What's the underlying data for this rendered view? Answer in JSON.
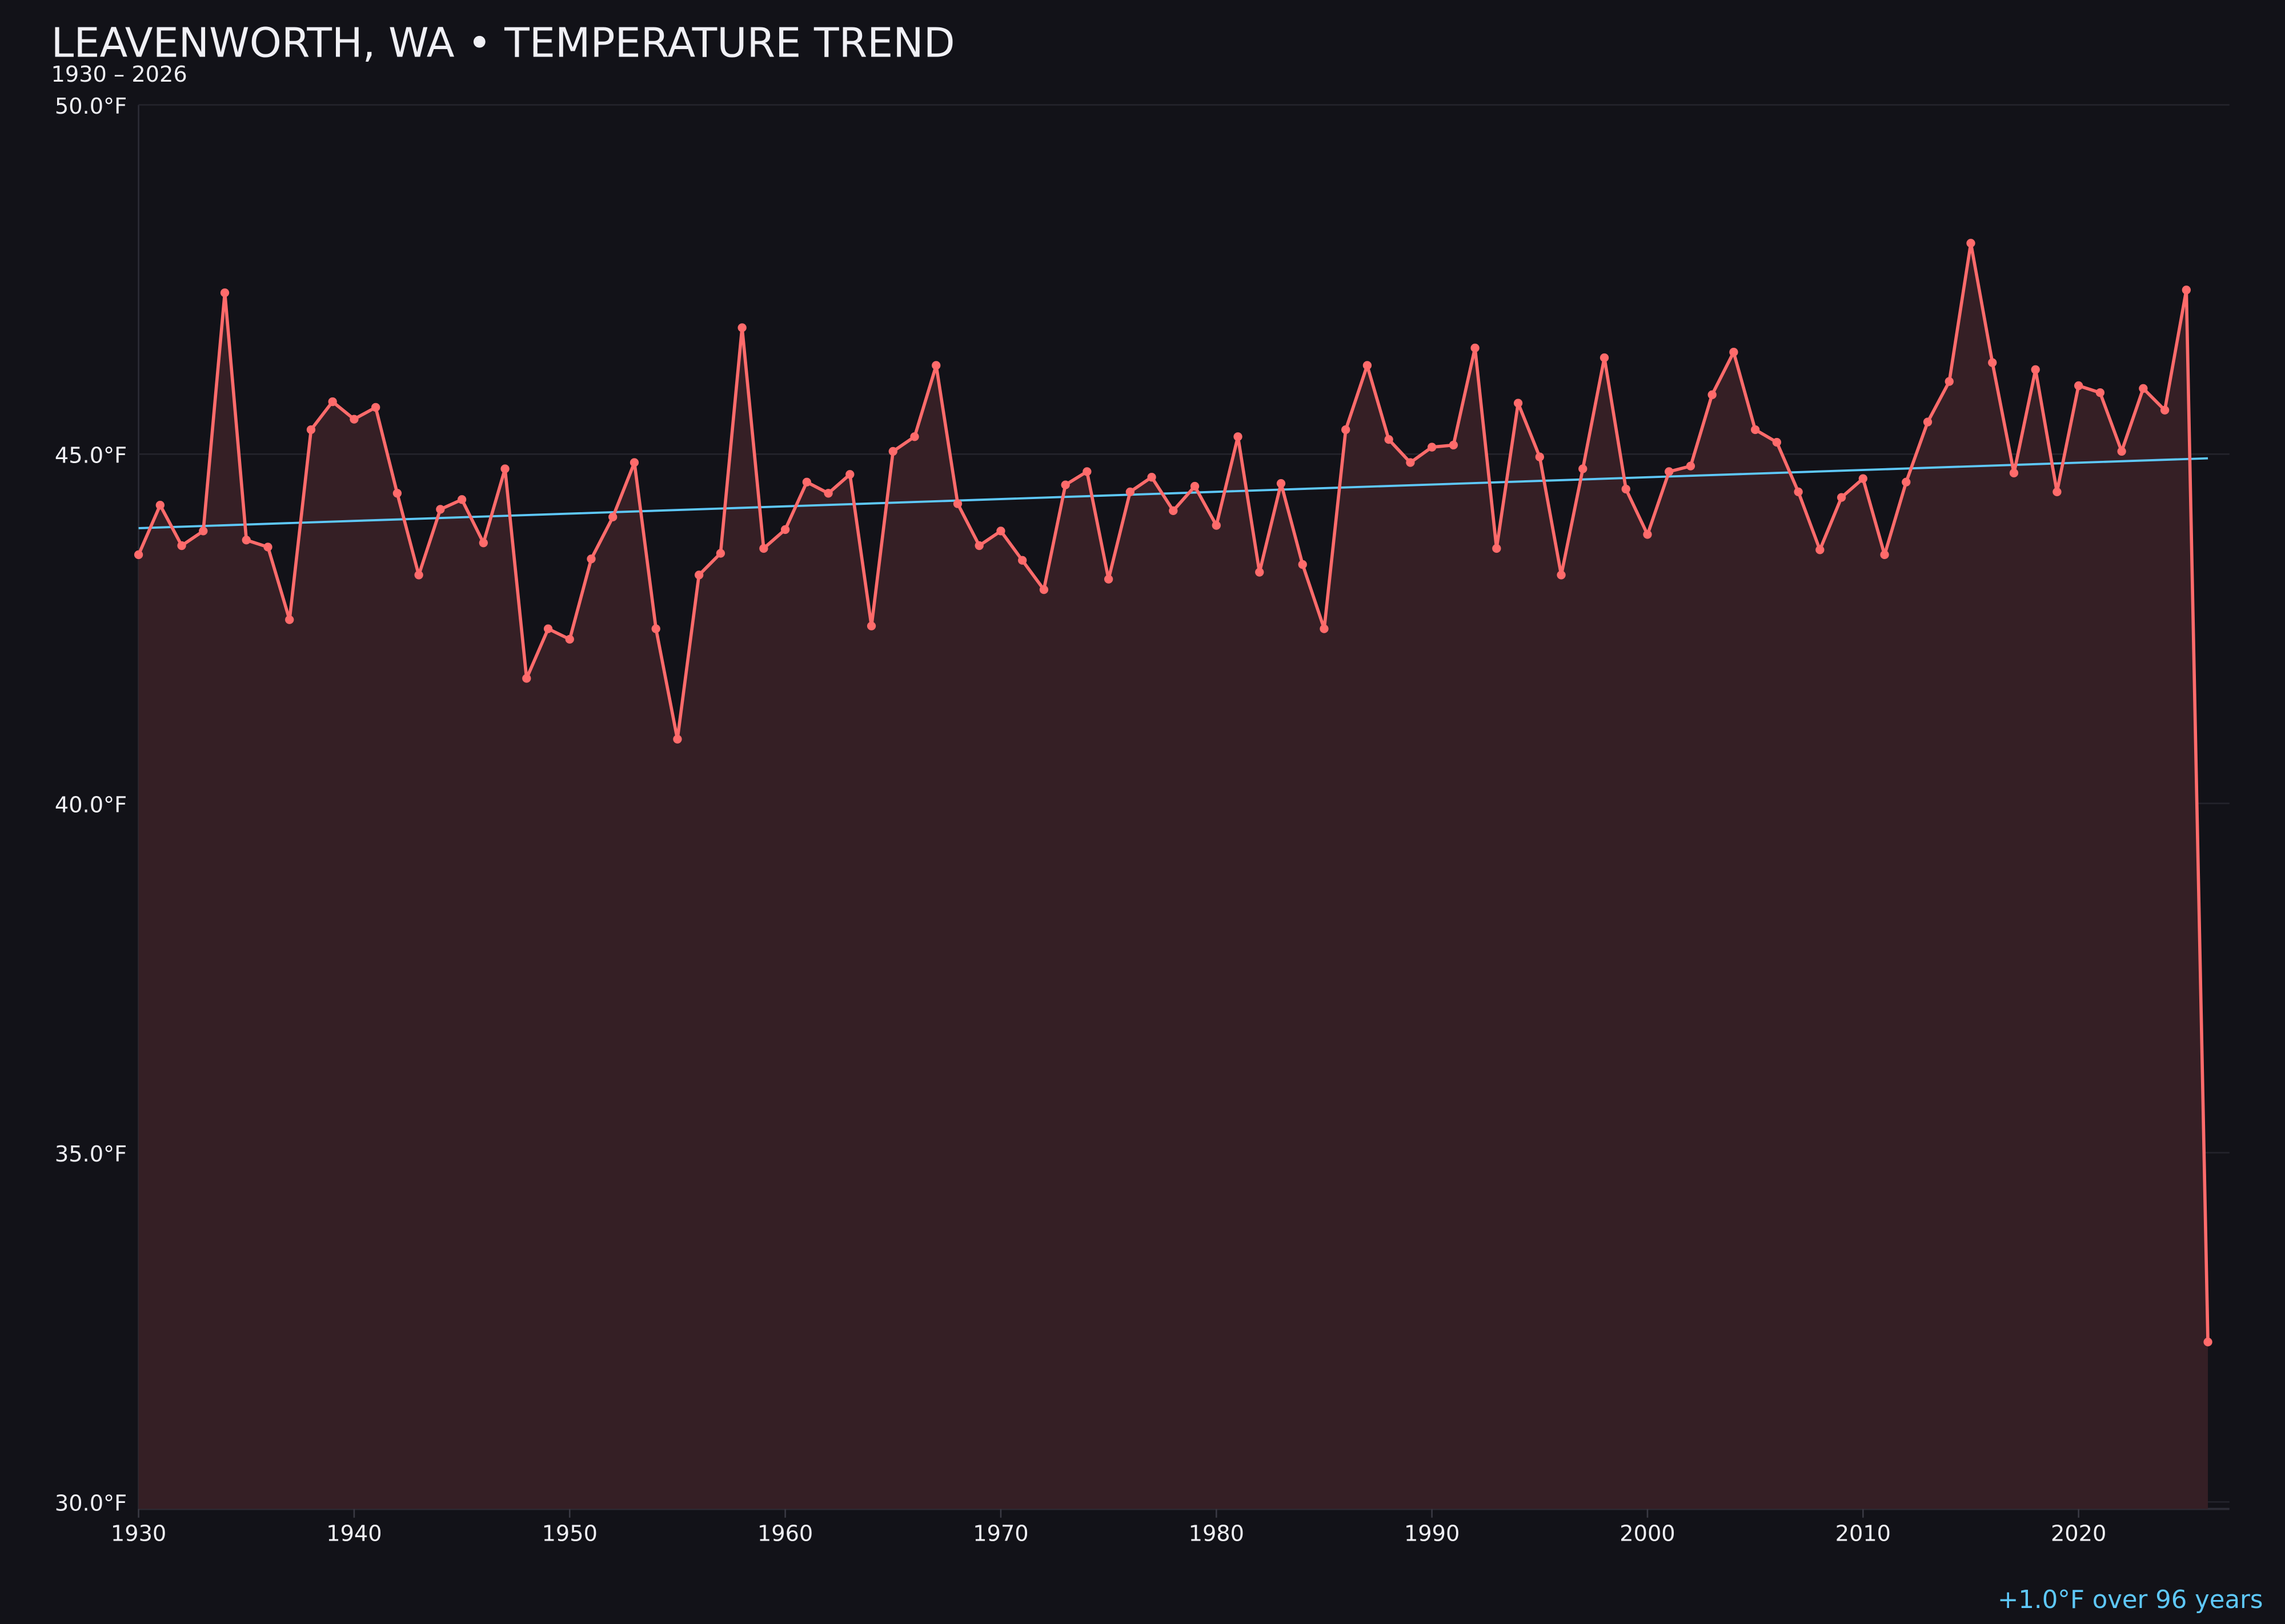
{
  "chart_data": {
    "type": "line",
    "title": "LEAVENWORTH, WA • TEMPERATURE TREND",
    "subtitle": "1930 – 2026",
    "xlabel": "",
    "ylabel": "",
    "xlim": [
      1930,
      2027
    ],
    "ylim": [
      29.9,
      50.0
    ],
    "x_ticks": [
      1930,
      1940,
      1950,
      1960,
      1970,
      1980,
      1990,
      2000,
      2010,
      2020
    ],
    "y_ticks": [
      30,
      35,
      40,
      45,
      50
    ],
    "y_tick_labels": [
      "30.0°F",
      "35.0°F",
      "40.0°F",
      "45.0°F",
      "50.0°F"
    ],
    "grid": "horizontal",
    "colors": {
      "background": "#121218",
      "line": "#ff6b6b",
      "fill": "#351f25",
      "trend": "#5ec8fa",
      "text": "#f0f0f5",
      "grid": "#24242c"
    },
    "x": [
      1930,
      1931,
      1932,
      1933,
      1934,
      1935,
      1936,
      1937,
      1938,
      1939,
      1940,
      1941,
      1942,
      1943,
      1944,
      1945,
      1946,
      1947,
      1948,
      1949,
      1950,
      1951,
      1952,
      1953,
      1954,
      1955,
      1956,
      1957,
      1958,
      1959,
      1960,
      1961,
      1962,
      1963,
      1964,
      1965,
      1966,
      1967,
      1968,
      1969,
      1970,
      1971,
      1972,
      1973,
      1974,
      1975,
      1976,
      1977,
      1978,
      1979,
      1980,
      1981,
      1982,
      1983,
      1984,
      1985,
      1986,
      1987,
      1988,
      1989,
      1990,
      1991,
      1992,
      1993,
      1994,
      1995,
      1996,
      1997,
      1998,
      1999,
      2000,
      2001,
      2002,
      2003,
      2004,
      2005,
      2006,
      2007,
      2008,
      2009,
      2010,
      2011,
      2012,
      2013,
      2014,
      2015,
      2016,
      2017,
      2018,
      2019,
      2020,
      2021,
      2022,
      2023,
      2024,
      2025,
      2026
    ],
    "series": [
      {
        "values": [
          43.56,
          44.27,
          43.69,
          43.9,
          47.31,
          43.77,
          43.67,
          42.63,
          45.35,
          45.75,
          45.5,
          45.67,
          44.44,
          43.27,
          44.21,
          44.35,
          43.73,
          44.79,
          41.79,
          42.5,
          42.35,
          43.5,
          44.1,
          44.88,
          42.5,
          40.92,
          43.27,
          43.58,
          46.81,
          43.65,
          43.92,
          44.6,
          44.44,
          44.71,
          42.54,
          45.04,
          45.25,
          46.27,
          44.29,
          43.69,
          43.9,
          43.48,
          43.06,
          44.56,
          44.75,
          43.21,
          44.46,
          44.67,
          44.19,
          44.54,
          43.98,
          45.25,
          43.31,
          44.58,
          43.42,
          42.5,
          45.35,
          46.27,
          45.21,
          44.88,
          45.1,
          45.13,
          46.52,
          43.65,
          45.73,
          44.96,
          43.27,
          44.79,
          46.38,
          44.5,
          43.85,
          44.75,
          44.83,
          45.85,
          46.46,
          45.35,
          45.17,
          44.46,
          43.63,
          44.38,
          44.65,
          43.56,
          44.6,
          45.46,
          46.04,
          48.02,
          46.31,
          44.73,
          46.21,
          44.46,
          45.98,
          45.88,
          45.04,
          45.94,
          45.63,
          47.35,
          32.29
        ]
      }
    ],
    "trend": {
      "x": [
        1930,
        2026
      ],
      "y": [
        43.94,
        44.94
      ]
    },
    "annotation": "+1.0°F over 96 years"
  }
}
